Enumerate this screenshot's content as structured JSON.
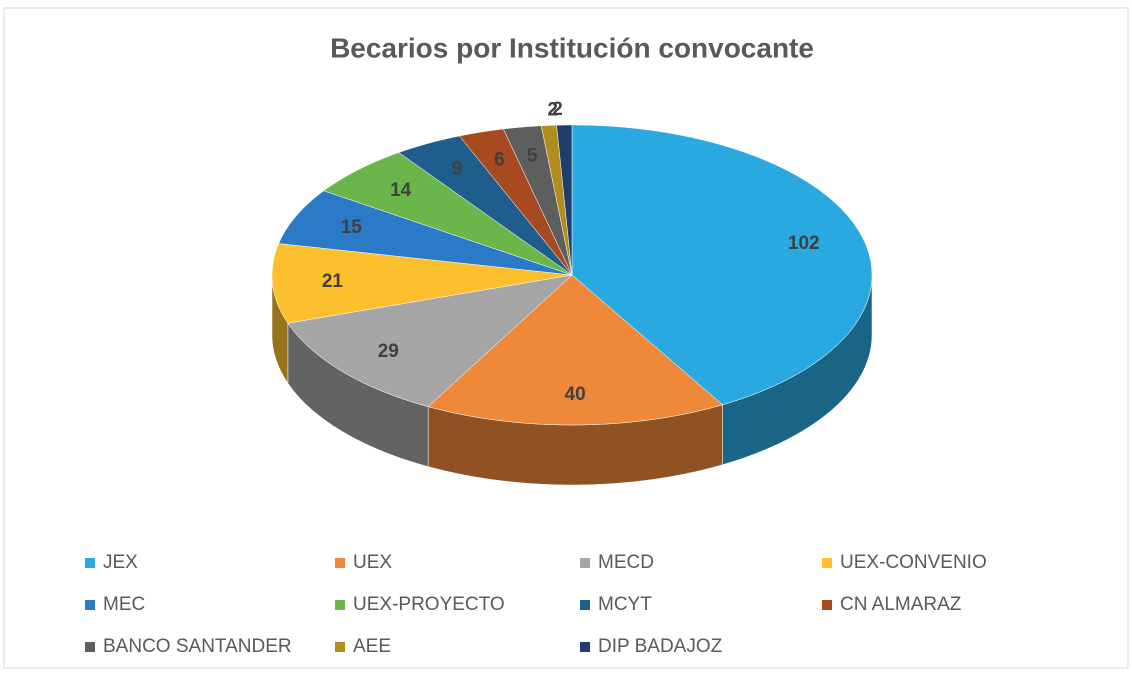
{
  "chart_data": {
    "type": "pie",
    "title": "Becarios por Institución convocante",
    "categories": [
      "JEX",
      "UEX",
      "MECD",
      "UEX-CONVENIO",
      "MEC",
      "UEX-PROYECTO",
      "MCYT",
      "CN ALMARAZ",
      "BANCO SANTANDER",
      "AEE",
      "DIP BADAJOZ"
    ],
    "values": [
      102,
      40,
      29,
      21,
      15,
      14,
      9,
      6,
      5,
      2,
      2
    ],
    "colors": [
      "#2aa8e0",
      "#f0883a",
      "#a5a5a5",
      "#fcc02e",
      "#2a7ac8",
      "#6ab64a",
      "#1f5e8c",
      "#a84a20",
      "#5e5e5e",
      "#b08d1c",
      "#1e3e6e"
    ],
    "legend": "bottom"
  }
}
